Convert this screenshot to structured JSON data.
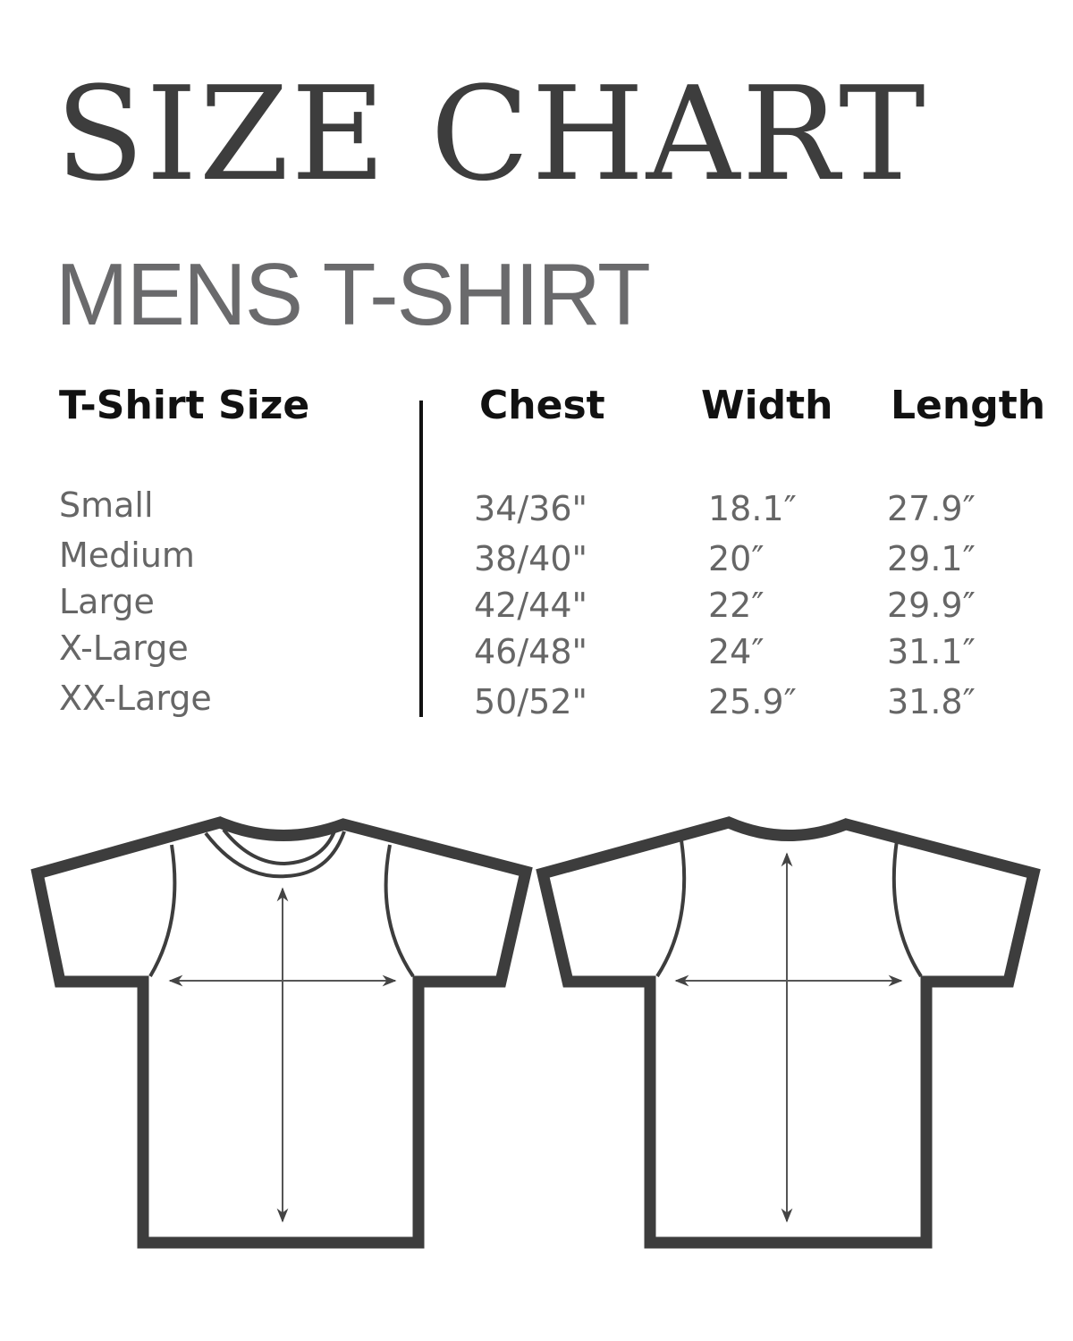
{
  "title": "SIZE CHART",
  "subtitle": "MENS T-SHIRT",
  "table": {
    "headers": [
      "T-Shirt Size",
      "Chest",
      "Width",
      "Length"
    ],
    "rows": [
      [
        "Small",
        "34/36\"",
        "18.1″",
        "27.9″"
      ],
      [
        "Medium",
        "38/40\"",
        "20″",
        "29.1″"
      ],
      [
        "Large",
        "42/44\"",
        "22″",
        "29.9″"
      ],
      [
        "X-Large",
        "46/48\"",
        "24″",
        "31.1″"
      ],
      [
        "XX-Large",
        "50/52\"",
        "25.9″",
        "31.8″"
      ]
    ]
  },
  "colors": {
    "outline": "#3d3d3d",
    "heading": "#111111",
    "values": "#666666"
  }
}
